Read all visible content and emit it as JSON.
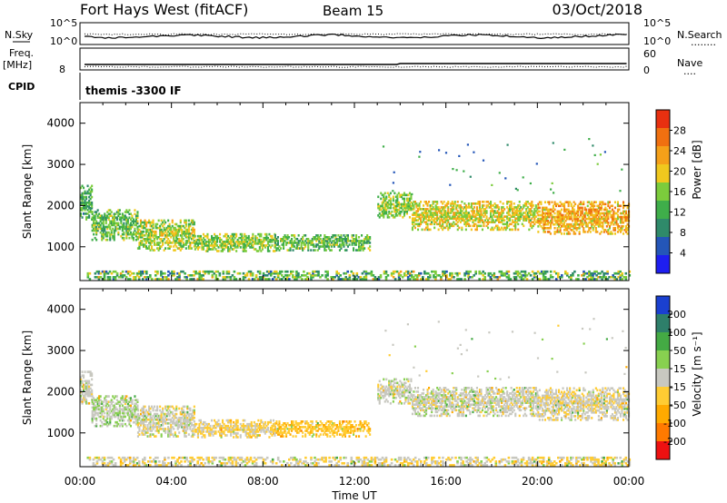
{
  "header": {
    "title": "Fort Hays West (fitACF)",
    "beam": "Beam 15",
    "date": "03/Oct/2018"
  },
  "summary": {
    "nsky_label": "N.Sky",
    "nsearch_label": "N.Search",
    "nsearch_legend": "........",
    "log_ticks": [
      "10^5",
      "10^0"
    ],
    "freq_label": "Freq.",
    "freq_unit": "[MHz]",
    "freq_tick": "8",
    "nave_label": "Nave",
    "nave_legend": "....",
    "nave_ticks": [
      "60",
      "0"
    ],
    "cpid_label": "CPID",
    "cpid_text": "themis -3300 IF"
  },
  "colors": {
    "power": [
      "#1e1ef0",
      "#2456b8",
      "#2f8a6a",
      "#3fae4a",
      "#7ccc3c",
      "#f0c81e",
      "#f5a019",
      "#f07010",
      "#e83010"
    ],
    "velocity": [
      "#ee1111",
      "#ff7a00",
      "#ffaa00",
      "#ffcc33",
      "#c8c8c0",
      "#88d050",
      "#44aa44",
      "#2e7f6a",
      "#1a40d0"
    ]
  },
  "chart_data": [
    {
      "type": "heatmap",
      "title": "",
      "xlabel": "Time UT",
      "ylabel": "Slant Range [km]",
      "x_ticks": [
        "00:00",
        "04:00",
        "08:00",
        "12:00",
        "16:00",
        "20:00",
        "00:00"
      ],
      "xlim_hours": [
        0,
        24
      ],
      "ylim": [
        180,
        4500
      ],
      "y_ticks": [
        1000,
        2000,
        3000,
        4000
      ],
      "colorbar": {
        "label": "Power [dB]",
        "range": [
          0,
          32
        ],
        "ticks": [
          "4",
          "8",
          "12",
          "16",
          "20",
          "24",
          "28"
        ]
      },
      "echo_bands": [
        {
          "t_start": 0.0,
          "t_end": 0.5,
          "range_low": 1650,
          "range_high": 2500,
          "level": 12
        },
        {
          "t_start": 0.5,
          "t_end": 2.5,
          "range_low": 1150,
          "range_high": 1900,
          "level": 14
        },
        {
          "t_start": 2.5,
          "t_end": 5.0,
          "range_low": 900,
          "range_high": 1650,
          "level": 17
        },
        {
          "t_start": 5.0,
          "t_end": 8.5,
          "range_low": 880,
          "range_high": 1300,
          "level": 16
        },
        {
          "t_start": 8.5,
          "t_end": 12.7,
          "range_low": 900,
          "range_high": 1300,
          "level": 14
        },
        {
          "t_start": 13.0,
          "t_end": 14.5,
          "range_low": 1700,
          "range_high": 2300,
          "level": 16
        },
        {
          "t_start": 14.5,
          "t_end": 20.0,
          "range_low": 1400,
          "range_high": 2100,
          "level": 19
        },
        {
          "t_start": 20.0,
          "t_end": 24.0,
          "range_low": 1300,
          "range_high": 2100,
          "level": 22
        }
      ],
      "ground_band": {
        "range_low": 200,
        "range_high": 400,
        "t_start": 0.3,
        "t_end": 24.0
      }
    },
    {
      "type": "heatmap",
      "title": "",
      "xlabel": "Time UT",
      "ylabel": "Slant Range [km]",
      "x_ticks": [
        "00:00",
        "04:00",
        "08:00",
        "12:00",
        "16:00",
        "20:00",
        "00:00"
      ],
      "xlim_hours": [
        0,
        24
      ],
      "ylim": [
        180,
        4500
      ],
      "y_ticks": [
        1000,
        2000,
        3000,
        4000
      ],
      "colorbar": {
        "label": "Velocity [m s⁻¹]",
        "range": [
          -250,
          250
        ],
        "ticks": [
          "200",
          "100",
          "50",
          "15",
          "-15",
          "-50",
          "-100",
          "-200"
        ]
      },
      "echo_bands": [
        {
          "t_start": 0.0,
          "t_end": 0.5,
          "range_low": 1700,
          "range_high": 2500,
          "level": 0
        },
        {
          "t_start": 0.5,
          "t_end": 2.5,
          "range_low": 1150,
          "range_high": 1900,
          "level": 10
        },
        {
          "t_start": 2.5,
          "t_end": 5.0,
          "range_low": 900,
          "range_high": 1650,
          "level": 0
        },
        {
          "t_start": 5.0,
          "t_end": 8.5,
          "range_low": 880,
          "range_high": 1300,
          "level": -20
        },
        {
          "t_start": 8.5,
          "t_end": 12.7,
          "range_low": 900,
          "range_high": 1300,
          "level": -40
        },
        {
          "t_start": 13.0,
          "t_end": 14.5,
          "range_low": 1700,
          "range_high": 2300,
          "level": 0
        },
        {
          "t_start": 14.5,
          "t_end": 20.0,
          "range_low": 1400,
          "range_high": 2100,
          "level": 0
        },
        {
          "t_start": 20.0,
          "t_end": 24.0,
          "range_low": 1300,
          "range_high": 2100,
          "level": -5
        }
      ],
      "ground_band": {
        "range_low": 200,
        "range_high": 400,
        "t_start": 0.3,
        "t_end": 24.0
      }
    }
  ]
}
